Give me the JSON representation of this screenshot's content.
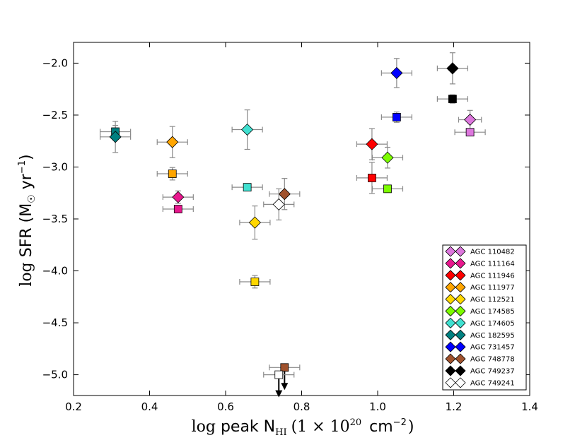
{
  "chart_data": {
    "type": "scatter",
    "title": "",
    "xlabel_parts": {
      "pre": "log",
      "main": "peak N",
      "sub": "HI",
      "paren": "(1 × 10",
      "sup": "20",
      "unit": " cm",
      "unit_sup": "−2",
      "close": ")"
    },
    "ylabel_parts": {
      "pre": "log",
      "main": "SFR (M",
      "sun": "☉",
      "unit": " yr",
      "unit_sup": "−1",
      "close": ")"
    },
    "xlim": [
      0.2,
      1.4
    ],
    "ylim": [
      -5.2,
      -1.8
    ],
    "x_ticks": [
      0.2,
      0.4,
      0.6,
      0.8,
      1.0,
      1.2,
      1.4
    ],
    "x_tick_labels": [
      "0.2",
      "0.4",
      "0.6",
      "0.8",
      "1.0",
      "1.2",
      "1.4"
    ],
    "y_ticks": [
      -2.0,
      -2.5,
      -3.0,
      -3.5,
      -4.0,
      -4.5,
      -5.0
    ],
    "y_tick_labels": [
      "−2.0",
      "−2.5",
      "−3.0",
      "−3.5",
      "−4.0",
      "−4.5",
      "−5.0"
    ],
    "legend_position": "lower-right",
    "series": [
      {
        "name": "AGC 110482",
        "color": "#dd77dd",
        "diamond": {
          "x": 1.243,
          "y": -2.545,
          "xerr": 0.03,
          "yerr": 0.09
        },
        "square": {
          "x": 1.243,
          "y": -2.665,
          "xerr": 0.04,
          "yerr": 0.0
        }
      },
      {
        "name": "AGC 111164",
        "color": "#e8188e",
        "diamond": {
          "x": 0.475,
          "y": -3.29,
          "xerr": 0.04,
          "yerr": 0.06
        },
        "square": {
          "x": 0.475,
          "y": -3.405,
          "xerr": 0.04,
          "yerr": 0.03
        }
      },
      {
        "name": "AGC 111946",
        "color": "#ff0000",
        "diamond": {
          "x": 0.985,
          "y": -2.78,
          "xerr": 0.04,
          "yerr": 0.15
        },
        "square": {
          "x": 0.985,
          "y": -3.105,
          "xerr": 0.04,
          "yerr": 0.15
        }
      },
      {
        "name": "AGC 111977",
        "color": "#ffa500",
        "diamond": {
          "x": 0.46,
          "y": -2.76,
          "xerr": 0.04,
          "yerr": 0.15
        },
        "square": {
          "x": 0.46,
          "y": -3.065,
          "xerr": 0.04,
          "yerr": 0.06
        }
      },
      {
        "name": "AGC 112521",
        "color": "#ffd700",
        "diamond": {
          "x": 0.677,
          "y": -3.535,
          "xerr": 0.04,
          "yerr": 0.16
        },
        "square": {
          "x": 0.677,
          "y": -4.105,
          "xerr": 0.04,
          "yerr": 0.06
        }
      },
      {
        "name": "AGC 174585",
        "color": "#7cfc00",
        "diamond": {
          "x": 1.026,
          "y": -2.91,
          "xerr": 0.04,
          "yerr": 0.1
        },
        "square": {
          "x": 1.026,
          "y": -3.21,
          "xerr": 0.04,
          "yerr": 0.03
        }
      },
      {
        "name": "AGC 174605",
        "color": "#40e0d0",
        "diamond": {
          "x": 0.657,
          "y": -2.64,
          "xerr": 0.04,
          "yerr": 0.19
        },
        "square": {
          "x": 0.657,
          "y": -3.195,
          "xerr": 0.04,
          "yerr": 0.03
        }
      },
      {
        "name": "AGC 182595",
        "color": "#008080",
        "diamond": {
          "x": 0.31,
          "y": -2.71,
          "xerr": 0.04,
          "yerr": 0.15
        },
        "square": {
          "x": 0.31,
          "y": -2.66,
          "xerr": 0.04,
          "yerr": 0.06
        }
      },
      {
        "name": "AGC 731457",
        "color": "#0000ff",
        "diamond": {
          "x": 1.05,
          "y": -2.095,
          "xerr": 0.04,
          "yerr": 0.14
        },
        "square": {
          "x": 1.05,
          "y": -2.52,
          "xerr": 0.04,
          "yerr": 0.05
        }
      },
      {
        "name": "AGC 748778",
        "color": "#a0522d",
        "diamond": {
          "x": 0.755,
          "y": -3.26,
          "xerr": 0.04,
          "yerr": 0.15
        },
        "square": {
          "x": 0.755,
          "y": -4.93,
          "xerr": 0.04,
          "yerr": 0.0,
          "upper_limit": true
        }
      },
      {
        "name": "AGC 749237",
        "color": "#000000",
        "diamond": {
          "x": 1.197,
          "y": -2.05,
          "xerr": 0.04,
          "yerr": 0.15
        },
        "square": {
          "x": 1.197,
          "y": -2.345,
          "xerr": 0.04,
          "yerr": 0.04
        }
      },
      {
        "name": "AGC 749241",
        "color": "#ffffff",
        "diamond": {
          "x": 0.74,
          "y": -3.36,
          "xerr": 0.04,
          "yerr": 0.15
        },
        "square": {
          "x": 0.74,
          "y": -5.0,
          "xerr": 0.04,
          "yerr": 0.0,
          "upper_limit": true
        }
      }
    ]
  }
}
